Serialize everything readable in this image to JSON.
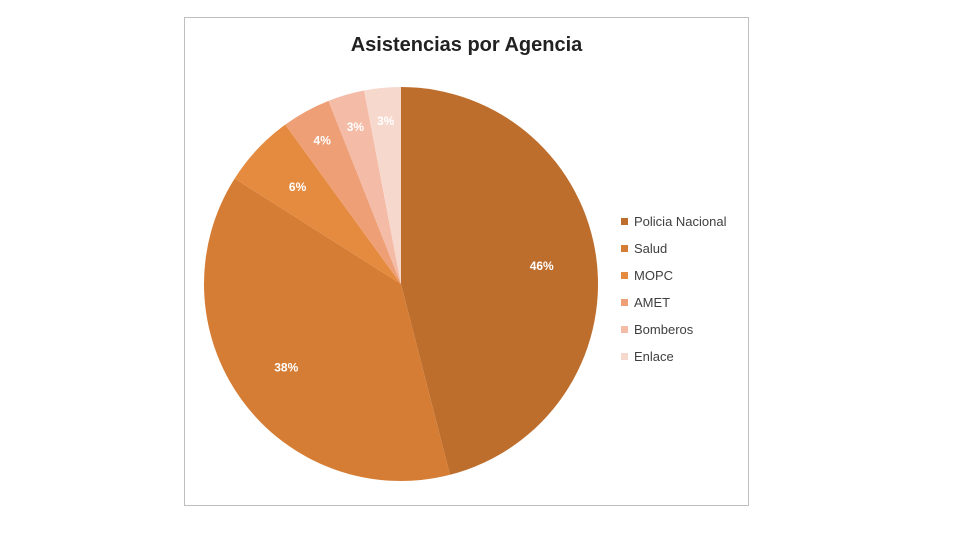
{
  "chart_data": {
    "type": "pie",
    "title": "Asistencias por Agencia",
    "categories": [
      "Policia Nacional",
      "Salud",
      "MOPC",
      "AMET",
      "Bomberos",
      "Enlace"
    ],
    "values": [
      46,
      38,
      6,
      4,
      3,
      3
    ],
    "labels": [
      "46%",
      "38%",
      "6%",
      "4%",
      "3%",
      "3%"
    ],
    "colors": [
      "#bd6d2c",
      "#d57d34",
      "#e58b3f",
      "#ee9f75",
      "#f4bba6",
      "#f7d8cd"
    ],
    "legend_position": "right"
  }
}
